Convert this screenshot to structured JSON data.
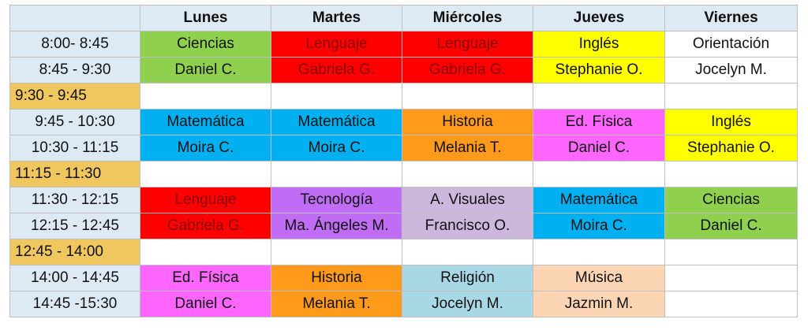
{
  "days": [
    "",
    "Lunes",
    "Martes",
    "Miércoles",
    "Jueves",
    "Viernes"
  ],
  "rows": [
    {
      "time": "8:00- 8:45",
      "type": "class",
      "cells": [
        {
          "text": "Ciencias",
          "color": "#8fd14f"
        },
        {
          "text": "Lenguaje",
          "color": "#ff0000",
          "dark": true
        },
        {
          "text": "Lenguaje",
          "color": "#ff0000",
          "dark": true
        },
        {
          "text": "Inglés",
          "color": "#ffff00"
        },
        {
          "text": "Orientación",
          "color": "#ffffff"
        }
      ]
    },
    {
      "time": "8:45 - 9:30",
      "type": "class",
      "cells": [
        {
          "text": "Daniel C.",
          "color": "#8fd14f"
        },
        {
          "text": "Gabriela G.",
          "color": "#ff0000",
          "dark": true
        },
        {
          "text": "Gabriela G.",
          "color": "#ff0000",
          "dark": true
        },
        {
          "text": "Stephanie O.",
          "color": "#ffff00"
        },
        {
          "text": "Jocelyn M.",
          "color": "#ffffff"
        }
      ]
    },
    {
      "time": "9:30 - 9:45",
      "type": "break",
      "cells": [
        {
          "text": "",
          "color": "#ffffff"
        },
        {
          "text": "",
          "color": "#ffffff"
        },
        {
          "text": "",
          "color": "#ffffff"
        },
        {
          "text": "",
          "color": "#ffffff"
        },
        {
          "text": "",
          "color": "#ffffff"
        }
      ]
    },
    {
      "time": "9:45 - 10:30",
      "type": "class",
      "cells": [
        {
          "text": "Matemática",
          "color": "#00b0f0"
        },
        {
          "text": "Matemática",
          "color": "#00b0f0"
        },
        {
          "text": "Historia",
          "color": "#ff9a1a"
        },
        {
          "text": "Ed. Física",
          "color": "#ff66ff"
        },
        {
          "text": "Inglés",
          "color": "#ffff00"
        }
      ]
    },
    {
      "time": "10:30 - 11:15",
      "type": "class",
      "cells": [
        {
          "text": "Moira C.",
          "color": "#00b0f0"
        },
        {
          "text": "Moira C.",
          "color": "#00b0f0"
        },
        {
          "text": "Melania T.",
          "color": "#ff9a1a"
        },
        {
          "text": "Daniel C.",
          "color": "#ff66ff"
        },
        {
          "text": "Stephanie O.",
          "color": "#ffff00"
        }
      ]
    },
    {
      "time": "11:15 - 11:30",
      "type": "break",
      "cells": [
        {
          "text": "",
          "color": "#ffffff"
        },
        {
          "text": "",
          "color": "#ffffff"
        },
        {
          "text": "",
          "color": "#ffffff"
        },
        {
          "text": "",
          "color": "#ffffff"
        },
        {
          "text": "",
          "color": "#ffffff"
        }
      ]
    },
    {
      "time": "11:30 - 12:15",
      "type": "class",
      "cells": [
        {
          "text": "Lenguaje",
          "color": "#ff0000",
          "dark": true
        },
        {
          "text": "Tecnología",
          "color": "#c06cf5"
        },
        {
          "text": "A. Visuales",
          "color": "#cbb8dc"
        },
        {
          "text": "Matemática",
          "color": "#00b0f0"
        },
        {
          "text": "Ciencias",
          "color": "#8fd14f"
        }
      ]
    },
    {
      "time": "12:15 - 12:45",
      "type": "class",
      "cells": [
        {
          "text": "Gabriela G.",
          "color": "#ff0000",
          "dark": true
        },
        {
          "text": "Ma. Ángeles M.",
          "color": "#c06cf5"
        },
        {
          "text": "Francisco O.",
          "color": "#cbb8dc"
        },
        {
          "text": "Moira C.",
          "color": "#00b0f0"
        },
        {
          "text": "Daniel C.",
          "color": "#8fd14f"
        }
      ]
    },
    {
      "time": "12:45 - 14:00",
      "type": "break",
      "cells": [
        {
          "text": "",
          "color": "#ffffff"
        },
        {
          "text": "",
          "color": "#ffffff"
        },
        {
          "text": "",
          "color": "#ffffff"
        },
        {
          "text": "",
          "color": "#ffffff"
        },
        {
          "text": "",
          "color": "#ffffff"
        }
      ]
    },
    {
      "time": "14:00 - 14:45",
      "type": "class",
      "cells": [
        {
          "text": "Ed. Física",
          "color": "#ff66ff"
        },
        {
          "text": "Historia",
          "color": "#ff9a1a"
        },
        {
          "text": "Religión",
          "color": "#a8d8e6"
        },
        {
          "text": "Música",
          "color": "#fcd5b4"
        },
        {
          "text": "",
          "color": "#ffffff"
        }
      ]
    },
    {
      "time": "14:45 -15:30",
      "type": "class",
      "cells": [
        {
          "text": "Daniel C.",
          "color": "#ff66ff"
        },
        {
          "text": "Melania T.",
          "color": "#ff9a1a"
        },
        {
          "text": "Jocelyn M.",
          "color": "#a8d8e6"
        },
        {
          "text": "Jazmin M.",
          "color": "#fcd5b4"
        },
        {
          "text": "",
          "color": "#ffffff"
        }
      ]
    }
  ]
}
